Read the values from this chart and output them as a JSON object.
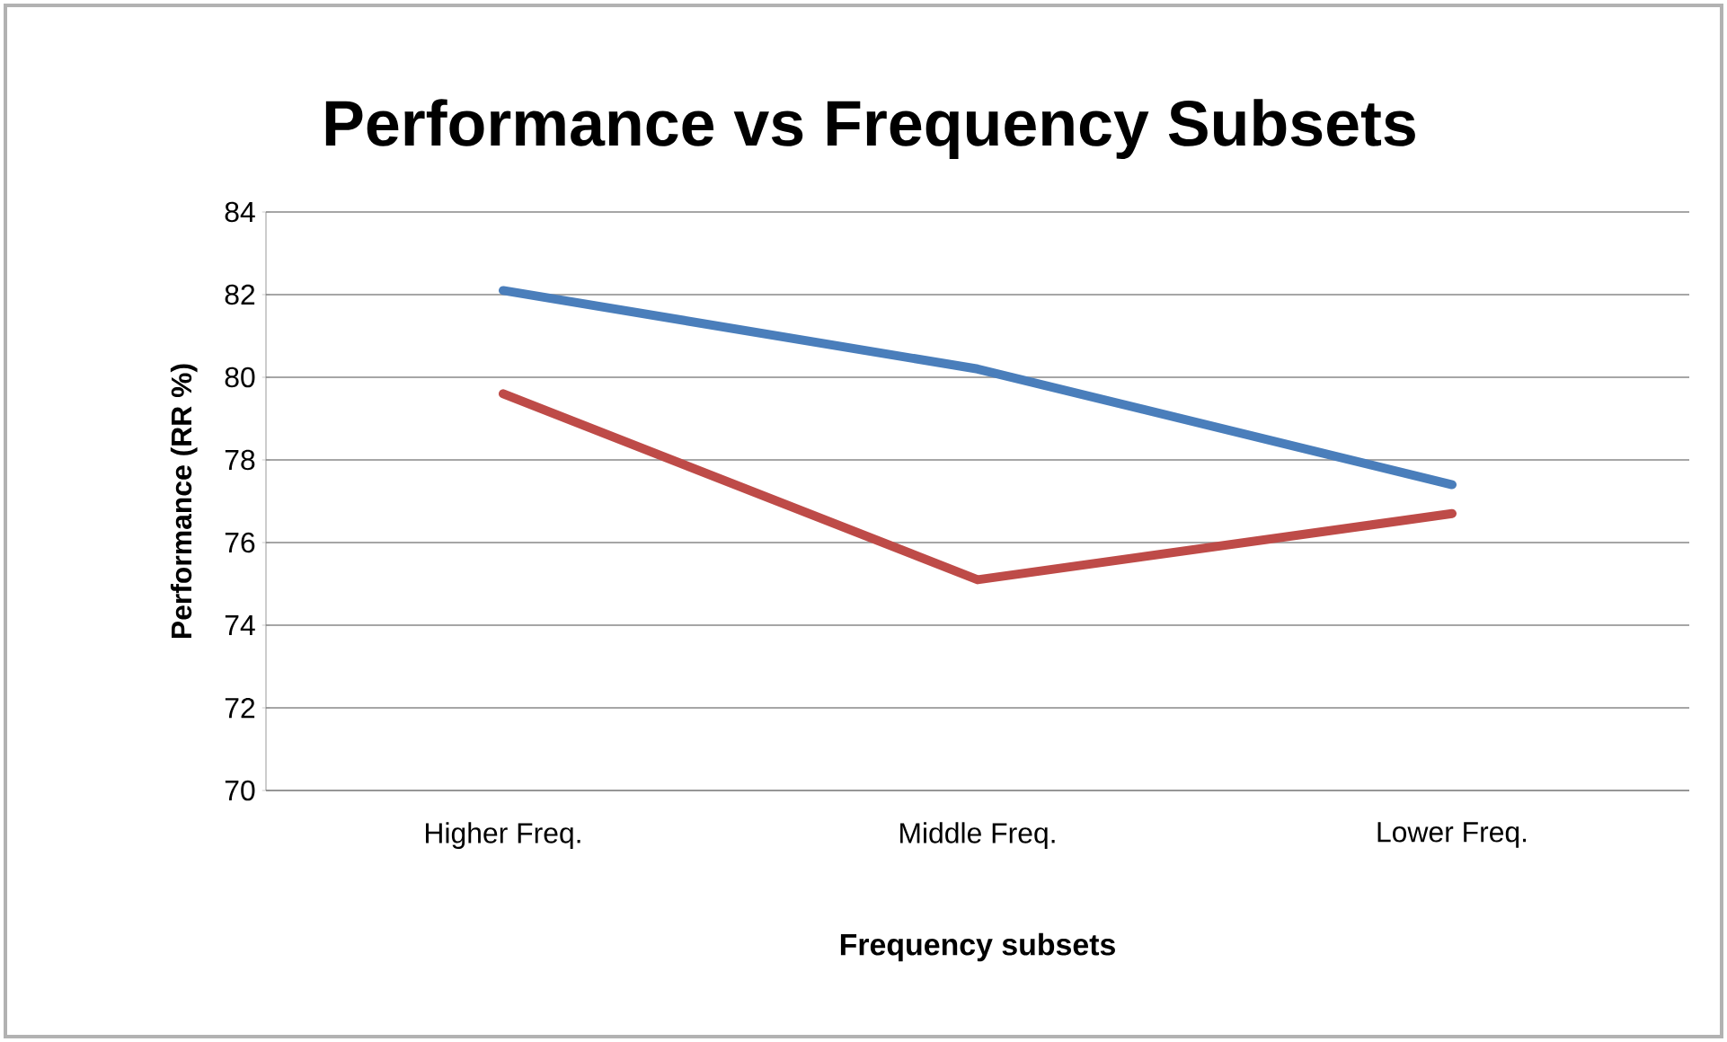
{
  "chart_data": {
    "type": "line",
    "title": "Performance vs Frequency Subsets",
    "xlabel": "Frequency subsets",
    "ylabel": "Performance (RR %)",
    "categories": [
      "Higher Freq.",
      "Middle Freq.",
      "Lower Freq."
    ],
    "series": [
      {
        "color": "#4a7ebb",
        "values": [
          82.1,
          80.2,
          77.4
        ]
      },
      {
        "color": "#be4b48",
        "values": [
          79.6,
          75.1,
          76.7
        ]
      }
    ],
    "ylim": [
      70,
      84
    ],
    "yticks": [
      70,
      72,
      74,
      76,
      78,
      80,
      82,
      84
    ],
    "grid": "y",
    "marker": "none",
    "line_style": "solid"
  }
}
